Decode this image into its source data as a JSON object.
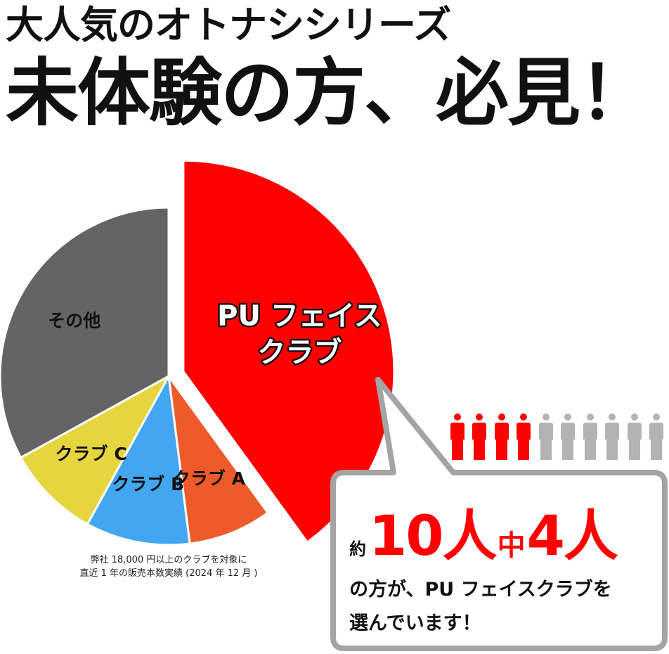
{
  "headline": {
    "line1": "大人気のオトナシシリーズ",
    "line2": "未体験の方、必見！"
  },
  "chart_data": {
    "type": "pie",
    "series": [
      {
        "label": "PU フェイスクラブ",
        "label_lines": [
          "PU フェイス",
          "クラブ"
        ],
        "value": 40,
        "color": "#ff0000",
        "exploded": true
      },
      {
        "label": "クラブ A",
        "value": 8,
        "color": "#ee5a2a"
      },
      {
        "label": "クラブ B",
        "value": 10,
        "color": "#42a7f0"
      },
      {
        "label": "クラブ C",
        "value": 9,
        "color": "#e6d53f"
      },
      {
        "label": "その他",
        "value": 33,
        "color": "#646464"
      }
    ]
  },
  "footnote": {
    "line1": "弊社 18,000 円以上のクラブを対象に",
    "line2": "直近 1 年の販売本数実績 (2024 年 12 月 )"
  },
  "people_icons": {
    "total": 10,
    "highlighted": 4,
    "highlight_color": "#ff0000",
    "base_color": "#b3b3b3"
  },
  "callout": {
    "prefix": "約",
    "num1": "10",
    "unit1": "人",
    "mid": "中",
    "num2": "4",
    "unit2": "人",
    "line1": "の方が、PU フェイスクラブを",
    "line2": "選んでいます！"
  }
}
